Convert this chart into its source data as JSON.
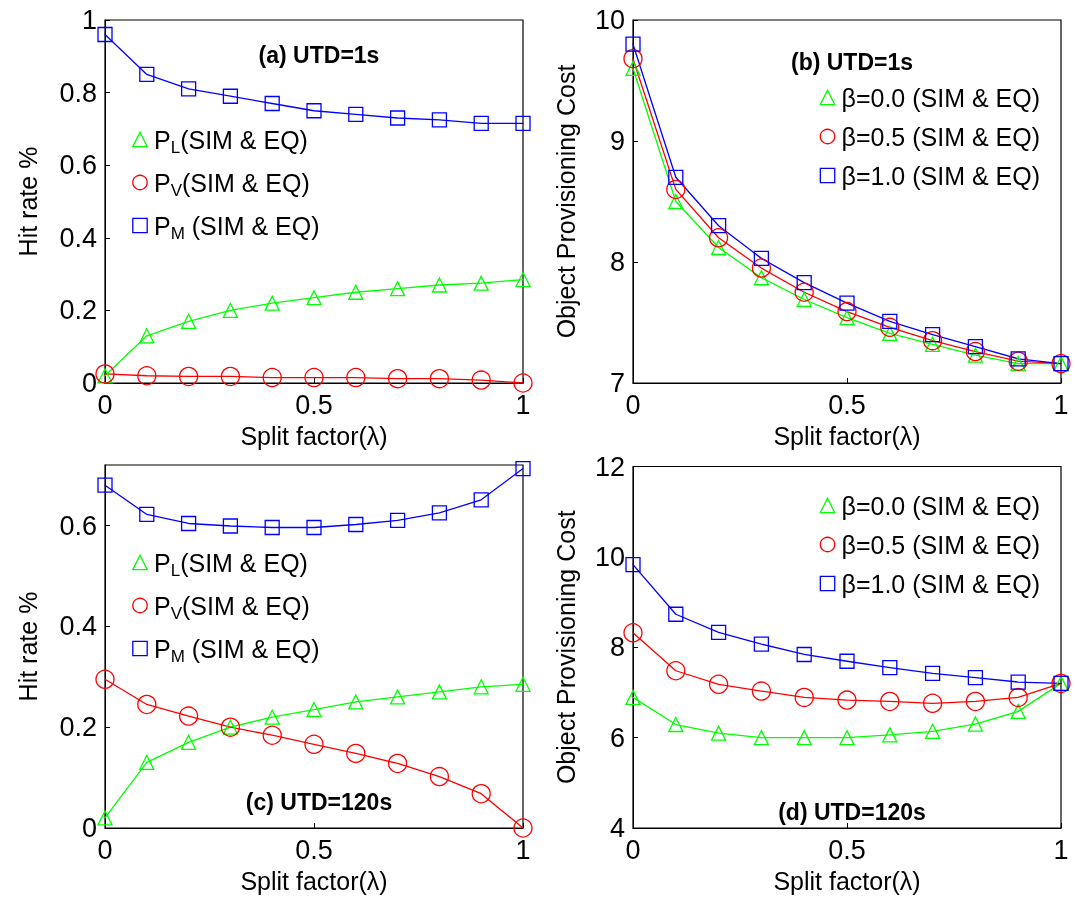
{
  "chart_data": [
    {
      "type": "line",
      "title": "(a) UTD=1s",
      "xlabel": "Split factor(λ)",
      "ylabel": "Hit rate %",
      "x": [
        0,
        0.1,
        0.2,
        0.3,
        0.4,
        0.5,
        0.6,
        0.7,
        0.8,
        0.9,
        1
      ],
      "xlim": [
        0,
        1
      ],
      "xticks": [
        0,
        0.5,
        1
      ],
      "ylim": [
        0,
        1
      ],
      "yticks": [
        0,
        0.2,
        0.4,
        0.6,
        0.8,
        1
      ],
      "legend": "left",
      "series": [
        {
          "name": "P$_{L}$(SIM & EQ)",
          "color": "#00ff00",
          "marker": "triangle",
          "values": [
            0.02,
            0.13,
            0.17,
            0.2,
            0.22,
            0.235,
            0.25,
            0.26,
            0.27,
            0.275,
            0.285
          ]
        },
        {
          "name": "P$_{V}$(SIM & EQ)",
          "color": "#ff0000",
          "marker": "circle",
          "values": [
            0.025,
            0.02,
            0.018,
            0.018,
            0.015,
            0.015,
            0.015,
            0.012,
            0.012,
            0.008,
            0
          ]
        },
        {
          "name": "P$_{M}$ (SIM & EQ)",
          "color": "#0000ff",
          "marker": "square",
          "values": [
            0.96,
            0.85,
            0.81,
            0.79,
            0.77,
            0.75,
            0.74,
            0.73,
            0.725,
            0.715,
            0.715
          ]
        }
      ]
    },
    {
      "type": "line",
      "title": "(b) UTD=1s",
      "xlabel": "Split factor(λ)",
      "ylabel": "Object Provisioning Cost",
      "x": [
        0,
        0.1,
        0.2,
        0.3,
        0.4,
        0.5,
        0.6,
        0.7,
        0.8,
        0.9,
        1
      ],
      "xlim": [
        0,
        1
      ],
      "xticks": [
        0,
        0.5,
        1
      ],
      "ylim": [
        7,
        10
      ],
      "yticks": [
        7,
        8,
        9,
        10
      ],
      "legend": "top right",
      "series": [
        {
          "name": "β=0.0 (SIM & EQ)",
          "color": "#00ff00",
          "marker": "triangle",
          "values": [
            9.6,
            8.5,
            8.12,
            7.87,
            7.69,
            7.54,
            7.41,
            7.32,
            7.23,
            7.16,
            7.16
          ]
        },
        {
          "name": "β=0.5 (SIM & EQ)",
          "color": "#ff0000",
          "marker": "circle",
          "values": [
            9.68,
            8.6,
            8.2,
            7.95,
            7.75,
            7.59,
            7.46,
            7.35,
            7.26,
            7.18,
            7.16
          ]
        },
        {
          "name": "β=1.0 (SIM & EQ)",
          "color": "#0000ff",
          "marker": "square",
          "values": [
            9.8,
            8.7,
            8.3,
            8.03,
            7.83,
            7.66,
            7.51,
            7.4,
            7.3,
            7.2,
            7.16
          ]
        }
      ]
    },
    {
      "type": "line",
      "title": "(c) UTD=120s",
      "xlabel": "Split factor(λ)",
      "ylabel": "Hit rate %",
      "x": [
        0,
        0.1,
        0.2,
        0.3,
        0.4,
        0.5,
        0.6,
        0.7,
        0.8,
        0.9,
        1
      ],
      "xlim": [
        0,
        1
      ],
      "xticks": [
        0,
        0.5,
        1
      ],
      "ylim": [
        0,
        0.72
      ],
      "yticks": [
        0,
        0.2,
        0.4,
        0.6
      ],
      "legend": "left",
      "series": [
        {
          "name": "P$_{L}$(SIM & EQ)",
          "color": "#00ff00",
          "marker": "triangle",
          "values": [
            0.02,
            0.13,
            0.17,
            0.2,
            0.22,
            0.235,
            0.25,
            0.26,
            0.27,
            0.28,
            0.285
          ]
        },
        {
          "name": "P$_{V}$(SIM & EQ)",
          "color": "#ff0000",
          "marker": "circle",
          "values": [
            0.295,
            0.245,
            0.222,
            0.2,
            0.184,
            0.166,
            0.148,
            0.128,
            0.102,
            0.068,
            0
          ]
        },
        {
          "name": "P$_{M}$ (SIM & EQ)",
          "color": "#0000ff",
          "marker": "square",
          "values": [
            0.68,
            0.622,
            0.604,
            0.599,
            0.596,
            0.596,
            0.602,
            0.61,
            0.625,
            0.651,
            0.713
          ]
        }
      ]
    },
    {
      "type": "line",
      "title": "(d) UTD=120s",
      "xlabel": "Split factor(λ)",
      "ylabel": "Object Provisioning Cost",
      "x": [
        0,
        0.1,
        0.2,
        0.3,
        0.4,
        0.5,
        0.6,
        0.7,
        0.8,
        0.9,
        1
      ],
      "xlim": [
        0,
        1
      ],
      "xticks": [
        0,
        0.5,
        1
      ],
      "ylim": [
        4,
        12
      ],
      "yticks": [
        4,
        6,
        8,
        10,
        12
      ],
      "legend": "top right",
      "series": [
        {
          "name": "β=0.0 (SIM & EQ)",
          "color": "#00ff00",
          "marker": "triangle",
          "values": [
            6.89,
            6.29,
            6.1,
            6.0,
            6.0,
            6.0,
            6.06,
            6.14,
            6.3,
            6.58,
            7.2
          ]
        },
        {
          "name": "β=0.5 (SIM & EQ)",
          "color": "#ff0000",
          "marker": "circle",
          "values": [
            8.32,
            7.48,
            7.18,
            7.03,
            6.89,
            6.83,
            6.8,
            6.76,
            6.8,
            6.89,
            7.2
          ]
        },
        {
          "name": "β=1.0 (SIM & EQ)",
          "color": "#0000ff",
          "marker": "square",
          "values": [
            9.83,
            8.73,
            8.33,
            8.07,
            7.84,
            7.69,
            7.55,
            7.42,
            7.33,
            7.23,
            7.2
          ]
        }
      ]
    }
  ]
}
